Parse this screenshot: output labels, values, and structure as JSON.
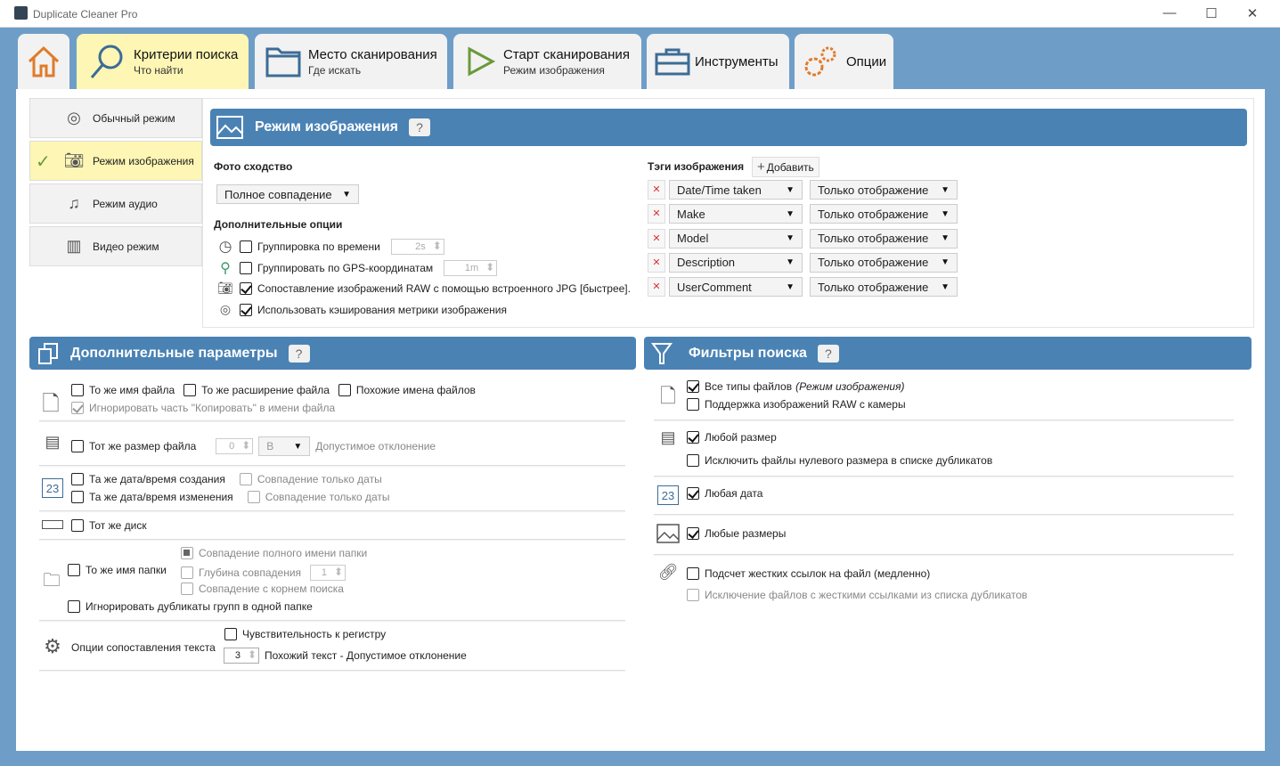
{
  "window": {
    "title": "Duplicate Cleaner Pro",
    "minimize": "—",
    "maximize": "☐",
    "close": "✕"
  },
  "tabs": [
    {
      "label": "",
      "icon": "home-icon"
    },
    {
      "label": "Критерии поиска",
      "sub": "Что найти",
      "icon": "search-icon",
      "active": true
    },
    {
      "label": "Место сканирования",
      "sub": "Где искать",
      "icon": "folder-icon"
    },
    {
      "label": "Старт сканирования",
      "sub": "Режим изображения",
      "icon": "play-icon"
    },
    {
      "label": "Инструменты",
      "icon": "toolbox-icon"
    },
    {
      "label": "Опции",
      "icon": "gear-icon"
    }
  ],
  "modes": [
    {
      "label": "Обычный режим",
      "icon": "fingerprint-icon"
    },
    {
      "label": "Режим изображения",
      "icon": "camera-icon",
      "selected": true
    },
    {
      "label": "Режим аудио",
      "icon": "music-icon"
    },
    {
      "label": "Видео режим",
      "icon": "film-icon"
    }
  ],
  "image_mode": {
    "title": "Режим изображения",
    "help": "?",
    "similarity_label": "Фото сходство",
    "similarity_value": "Полное совпадение",
    "extra_label": "Дополнительные опции",
    "options": [
      {
        "label": "Группировка по времени",
        "checked": false,
        "value": "2s"
      },
      {
        "label": "Группировать по GPS-координатам",
        "checked": false,
        "value": "1m"
      },
      {
        "label": "Сопоставление изображений RAW с помощью встроенного JPG [быстрее].",
        "checked": true
      },
      {
        "label": "Использовать кэширования метрики изображения",
        "checked": true
      }
    ],
    "tags_label": "Тэги изображения",
    "add_label": "Добавить",
    "remove": "✕",
    "tags": [
      {
        "tag": "Date/Time taken",
        "mode": "Только отображение"
      },
      {
        "tag": "Make",
        "mode": "Только отображение"
      },
      {
        "tag": "Model",
        "mode": "Только отображение"
      },
      {
        "tag": "Description",
        "mode": "Только отображение"
      },
      {
        "tag": "UserComment",
        "mode": "Только отображение"
      }
    ]
  },
  "extra": {
    "title": "Дополнительные параметры",
    "help": "?",
    "same_name": "То же имя файла",
    "same_ext": "То же расширение файла",
    "similar_names": "Похожие имена файлов",
    "ignore_copy": "Игнорировать часть \"Копировать\" в имени файла",
    "same_size": "Тот же размер файла",
    "size_value": "0",
    "size_unit": "B",
    "tolerance": "Допустимое отклонение",
    "same_created": "Та же дата/время создания",
    "same_modified": "Та же дата/время изменения",
    "date_only": "Совпадение только даты",
    "same_disk": "Тот же диск",
    "same_folder": "То же имя папки",
    "full_folder": "Совпадение полного имени папки",
    "depth": "Глубина совпадения",
    "depth_value": "1",
    "root_match": "Совпадение с корнем поиска",
    "ignore_same_folder": "Игнорировать дубликаты групп в одной папке",
    "text_opts": "Опции сопоставления текста",
    "case": "Чувствительность к регистру",
    "similar_value": "3",
    "similar_text": "Похожий текст - Допустимое отклонение"
  },
  "filters": {
    "title": "Фильтры поиска",
    "help": "?",
    "all_types": "Все типы файлов",
    "all_types_note": "(Режим изображения)",
    "raw": "Поддержка изображений RAW с камеры",
    "any_size": "Любой размер",
    "exclude_zero": "Исключить файлы нулевого размера в списке дубликатов",
    "any_date": "Любая дата",
    "any_dims": "Любые размеры",
    "hardlinks": "Подсчет жестких ссылок на файл (медленно)",
    "exclude_hardlinks": "Исключение файлов с жесткими ссылками из списка дубликатов"
  },
  "colors": {
    "header": "#4a82b4",
    "active_tab": "#fdf6b4",
    "frame": "#6e9ec8"
  }
}
